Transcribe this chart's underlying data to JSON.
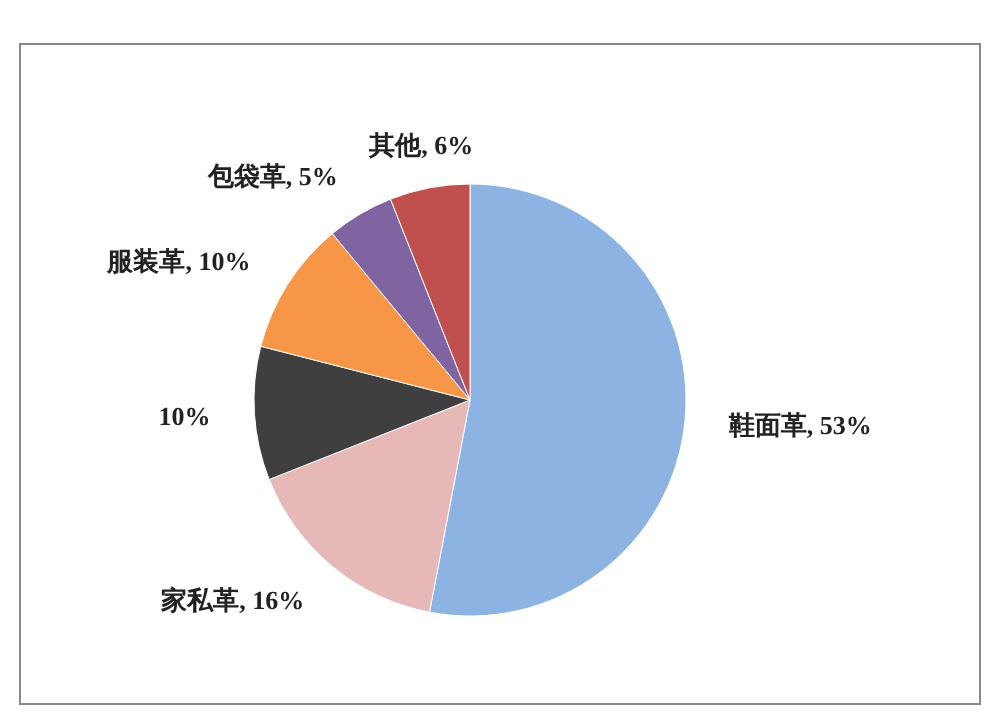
{
  "chart_data": {
    "type": "pie",
    "categories": [
      "鞋面革",
      "家私革",
      null,
      "服装革",
      "包袋革",
      "其他"
    ],
    "values": [
      53,
      16,
      10,
      10,
      5,
      6
    ],
    "value_labels": [
      "53%",
      "16%",
      "10%",
      "10%",
      "5%",
      "6%"
    ],
    "colors": [
      "#8db3e2",
      "#e6b9b8",
      "#3f3f3f",
      "#f79646",
      "#8064a2",
      "#c0504d"
    ]
  }
}
